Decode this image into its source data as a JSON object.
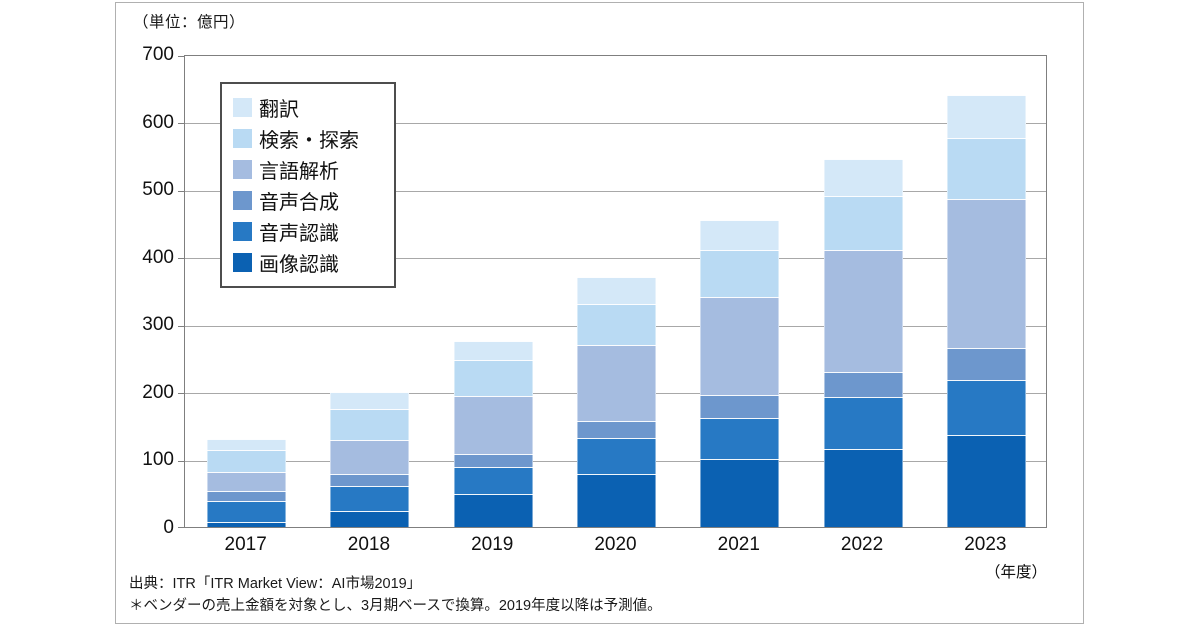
{
  "footer": {
    "source": "出典：ITR「ITR Market View：AI市場2019」",
    "note": "＊ベンダーの売上金額を対象とし、3月期ベースで換算。2019年度以降は予測値。"
  },
  "chart_data": {
    "type": "bar",
    "stacked": true,
    "unit_label": "（単位：億円）",
    "xlabel": "（年度）",
    "ylabel": "",
    "categories": [
      "2017",
      "2018",
      "2019",
      "2020",
      "2021",
      "2022",
      "2023"
    ],
    "series_bottom_to_top": [
      {
        "name": "画像認識",
        "color": "#0b61b2",
        "values": [
          8,
          23,
          49,
          78,
          100,
          116,
          136
        ]
      },
      {
        "name": "音声認識",
        "color": "#2779c4",
        "values": [
          31,
          37,
          40,
          53,
          62,
          77,
          82
        ]
      },
      {
        "name": "音声合成",
        "color": "#6d97cd",
        "values": [
          15,
          19,
          19,
          26,
          33,
          37,
          47
        ]
      },
      {
        "name": "言語解析",
        "color": "#a5bce0",
        "values": [
          28,
          50,
          86,
          113,
          145,
          180,
          220
        ]
      },
      {
        "name": "検索・探索",
        "color": "#b9daf3",
        "values": [
          32,
          45,
          53,
          60,
          70,
          80,
          90
        ]
      },
      {
        "name": "翻訳",
        "color": "#d4e8f8",
        "values": [
          16,
          26,
          28,
          40,
          45,
          55,
          65
        ]
      }
    ],
    "legend_order_top_to_bottom": [
      "翻訳",
      "検索・探索",
      "言語解析",
      "音声合成",
      "音声認識",
      "画像認識"
    ],
    "totals": [
      130,
      200,
      275,
      370,
      455,
      545,
      640
    ],
    "ylim": [
      0,
      700
    ],
    "ytick_step": 100,
    "grid": true,
    "legend_position": "upper-left-inside"
  }
}
